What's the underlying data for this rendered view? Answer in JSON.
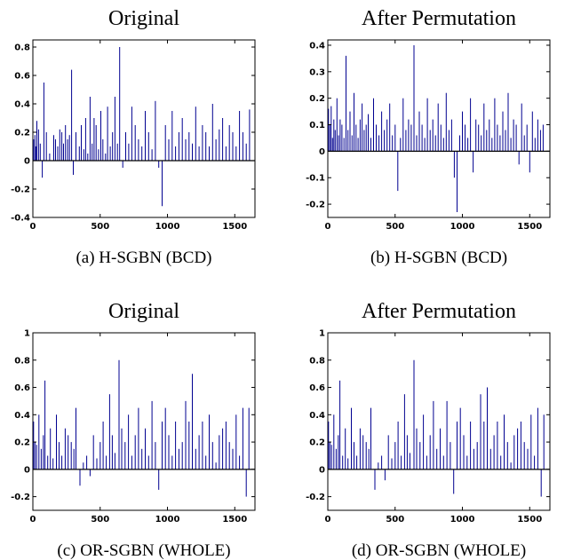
{
  "figure": {
    "panels": [
      {
        "title": "Original",
        "caption": "(a) H-SGBN (BCD)"
      },
      {
        "title": "After Permutation",
        "caption": "(b) H-SGBN (BCD)"
      },
      {
        "title": "Original",
        "caption": "(c) OR-SGBN (WHOLE)"
      },
      {
        "title": "After Permutation",
        "caption": "(d) OR-SGBN (WHOLE)"
      }
    ]
  },
  "colors": {
    "stem": "#000090",
    "baseline": "#000000",
    "frame": "#000000"
  },
  "chart_data": [
    {
      "type": "stem",
      "title": "Original",
      "caption": "(a) H-SGBN (BCD)",
      "xlim": [
        0,
        1650
      ],
      "ylim": [
        -0.4,
        0.85
      ],
      "xticks": [
        0,
        500,
        1000,
        1500
      ],
      "xtick_labels": [
        "0",
        "500",
        "1000",
        "1500"
      ],
      "yticks": [
        -0.4,
        -0.2,
        0,
        0.2,
        0.4,
        0.6,
        0.8
      ],
      "ytick_labels": [
        "-0.4",
        "-0.2",
        "0",
        "0.2",
        "0.4",
        "0.6",
        "0.8"
      ],
      "series": [
        {
          "x": [
            5,
            15,
            22,
            30,
            42,
            55,
            70,
            82,
            100,
            125,
            155,
            168,
            185,
            200,
            215,
            228,
            242,
            258,
            272,
            288,
            300,
            320,
            345,
            360,
            378,
            392,
            408,
            425,
            440,
            455,
            470,
            488,
            505,
            520,
            540,
            555,
            575,
            592,
            610,
            628,
            645,
            668,
            690,
            712,
            735,
            760,
            785,
            810,
            835,
            860,
            885,
            910,
            935,
            960,
            985,
            1010,
            1035,
            1060,
            1085,
            1110,
            1135,
            1160,
            1185,
            1210,
            1235,
            1260,
            1285,
            1310,
            1335,
            1360,
            1385,
            1410,
            1435,
            1460,
            1485,
            1510,
            1535,
            1560,
            1585,
            1610
          ],
          "y": [
            0.15,
            0.18,
            0.1,
            0.28,
            0.22,
            0.12,
            -0.12,
            0.55,
            0.2,
            0.05,
            0.18,
            0.15,
            0.1,
            0.22,
            0.2,
            0.12,
            0.25,
            0.15,
            0.18,
            0.64,
            -0.1,
            0.2,
            0.1,
            0.25,
            0.08,
            0.3,
            0.05,
            0.45,
            0.12,
            0.3,
            0.25,
            0.08,
            0.35,
            0.15,
            0.05,
            0.38,
            0.1,
            0.2,
            0.45,
            0.12,
            0.8,
            -0.05,
            0.2,
            0.12,
            0.38,
            0.25,
            0.15,
            0.1,
            0.35,
            0.2,
            0.08,
            0.42,
            -0.05,
            -0.32,
            0.25,
            0.15,
            0.35,
            0.1,
            0.2,
            0.3,
            0.15,
            0.2,
            0.12,
            0.38,
            0.1,
            0.25,
            0.2,
            0.1,
            0.4,
            0.15,
            0.22,
            0.3,
            0.1,
            0.25,
            0.2,
            0.1,
            0.35,
            0.2,
            0.12,
            0.36
          ]
        }
      ]
    },
    {
      "type": "stem",
      "title": "After Permutation",
      "caption": "(b) H-SGBN (BCD)",
      "xlim": [
        0,
        1650
      ],
      "ylim": [
        -0.25,
        0.42
      ],
      "xticks": [
        0,
        500,
        1000,
        1500
      ],
      "xtick_labels": [
        "0",
        "500",
        "1000",
        "1500"
      ],
      "yticks": [
        -0.2,
        -0.1,
        0,
        0.1,
        0.2,
        0.3,
        0.4
      ],
      "ytick_labels": [
        "-0.2",
        "-0.1",
        "0",
        "0.1",
        "0.2",
        "0.3",
        "0.4"
      ],
      "series": [
        {
          "x": [
            5,
            15,
            25,
            35,
            45,
            55,
            68,
            80,
            92,
            105,
            120,
            135,
            150,
            165,
            180,
            195,
            210,
            225,
            240,
            255,
            270,
            285,
            300,
            320,
            340,
            360,
            380,
            400,
            420,
            440,
            460,
            480,
            500,
            520,
            540,
            560,
            580,
            600,
            620,
            640,
            660,
            680,
            700,
            720,
            740,
            760,
            780,
            800,
            820,
            840,
            860,
            880,
            900,
            920,
            940,
            960,
            980,
            1000,
            1020,
            1040,
            1060,
            1080,
            1100,
            1120,
            1140,
            1160,
            1180,
            1200,
            1220,
            1240,
            1260,
            1280,
            1300,
            1320,
            1340,
            1360,
            1380,
            1400,
            1420,
            1440,
            1460,
            1480,
            1500,
            1520,
            1540,
            1560,
            1580,
            1600
          ],
          "y": [
            0.16,
            0.1,
            0.17,
            0.05,
            0.12,
            0.08,
            0.2,
            0.06,
            0.12,
            0.1,
            0.05,
            0.36,
            0.08,
            0.15,
            0.06,
            0.22,
            0.1,
            0.05,
            0.12,
            0.18,
            0.08,
            0.1,
            0.14,
            0.05,
            0.2,
            0.1,
            0.06,
            0.15,
            0.08,
            0.12,
            0.18,
            0.06,
            0.1,
            -0.15,
            0.05,
            0.2,
            0.08,
            0.12,
            0.1,
            0.4,
            0.06,
            0.15,
            0.1,
            0.05,
            0.2,
            0.08,
            0.12,
            0.06,
            0.18,
            0.1,
            0.05,
            0.22,
            0.08,
            0.12,
            -0.1,
            -0.23,
            0.06,
            0.15,
            0.1,
            0.05,
            0.2,
            -0.08,
            0.12,
            0.1,
            0.06,
            0.18,
            0.08,
            0.12,
            0.05,
            0.2,
            0.1,
            0.06,
            0.15,
            0.08,
            0.22,
            0.05,
            0.12,
            0.1,
            -0.05,
            0.18,
            0.06,
            0.1,
            -0.08,
            0.15,
            0.05,
            0.12,
            0.08,
            0.1
          ]
        }
      ]
    },
    {
      "type": "stem",
      "title": "Original",
      "caption": "(c) OR-SGBN (WHOLE)",
      "xlim": [
        0,
        1650
      ],
      "ylim": [
        -0.3,
        1.0
      ],
      "xticks": [
        0,
        500,
        1000,
        1500
      ],
      "xtick_labels": [
        "0",
        "500",
        "1000",
        "1500"
      ],
      "yticks": [
        -0.2,
        0,
        0.2,
        0.4,
        0.6,
        0.8,
        1
      ],
      "ytick_labels": [
        "-0.2",
        "0",
        "0.2",
        "0.4",
        "0.6",
        "0.8",
        "1"
      ],
      "series": [
        {
          "x": [
            5,
            15,
            28,
            45,
            62,
            78,
            90,
            110,
            130,
            150,
            175,
            195,
            215,
            240,
            262,
            285,
            305,
            320,
            350,
            375,
            400,
            425,
            450,
            475,
            500,
            522,
            545,
            570,
            590,
            610,
            640,
            660,
            685,
            710,
            735,
            760,
            785,
            810,
            835,
            860,
            885,
            910,
            935,
            960,
            985,
            1010,
            1035,
            1060,
            1085,
            1110,
            1135,
            1160,
            1185,
            1210,
            1235,
            1260,
            1285,
            1310,
            1335,
            1360,
            1385,
            1410,
            1435,
            1460,
            1485,
            1510,
            1535,
            1560,
            1585,
            1605
          ],
          "y": [
            0.35,
            0.2,
            0.18,
            0.4,
            0.15,
            0.25,
            0.65,
            0.1,
            0.3,
            0.08,
            0.4,
            0.2,
            0.1,
            0.3,
            0.25,
            0.2,
            0.15,
            0.45,
            -0.12,
            0.05,
            0.1,
            -0.05,
            0.25,
            0.08,
            0.2,
            0.35,
            0.1,
            0.55,
            0.25,
            0.12,
            0.8,
            0.3,
            0.2,
            0.4,
            0.1,
            0.25,
            0.45,
            0.15,
            0.3,
            0.1,
            0.5,
            0.2,
            -0.15,
            0.35,
            0.45,
            0.25,
            0.1,
            0.35,
            0.15,
            0.2,
            0.5,
            0.35,
            0.7,
            0.15,
            0.25,
            0.35,
            0.1,
            0.4,
            0.2,
            0.05,
            0.25,
            0.3,
            0.35,
            0.2,
            0.15,
            0.4,
            0.1,
            0.45,
            -0.2,
            0.45
          ]
        }
      ]
    },
    {
      "type": "stem",
      "title": "After Permutation",
      "caption": "(d) OR-SGBN (WHOLE)",
      "xlim": [
        0,
        1650
      ],
      "ylim": [
        -0.3,
        1.0
      ],
      "xticks": [
        0,
        500,
        1000,
        1500
      ],
      "xtick_labels": [
        "0",
        "500",
        "1000",
        "1500"
      ],
      "yticks": [
        -0.2,
        0,
        0.2,
        0.4,
        0.6,
        0.8,
        1
      ],
      "ytick_labels": [
        "-0.2",
        "0",
        "0.2",
        "0.4",
        "0.6",
        "0.8",
        "1"
      ],
      "series": [
        {
          "x": [
            5,
            15,
            28,
            45,
            62,
            78,
            90,
            110,
            130,
            150,
            175,
            195,
            215,
            240,
            262,
            285,
            305,
            320,
            350,
            375,
            400,
            425,
            450,
            475,
            500,
            522,
            545,
            570,
            590,
            610,
            640,
            660,
            685,
            710,
            735,
            760,
            785,
            810,
            835,
            860,
            885,
            910,
            935,
            960,
            985,
            1010,
            1035,
            1060,
            1085,
            1110,
            1135,
            1160,
            1185,
            1210,
            1235,
            1260,
            1285,
            1310,
            1335,
            1360,
            1385,
            1410,
            1435,
            1460,
            1485,
            1510,
            1535,
            1560,
            1585,
            1605
          ],
          "y": [
            0.35,
            0.2,
            0.18,
            0.4,
            0.15,
            0.25,
            0.65,
            0.1,
            0.3,
            0.08,
            0.45,
            0.2,
            0.1,
            0.3,
            0.25,
            0.2,
            0.15,
            0.45,
            -0.15,
            0.05,
            0.1,
            -0.08,
            0.25,
            0.08,
            0.2,
            0.35,
            0.1,
            0.55,
            0.25,
            0.12,
            0.8,
            0.3,
            0.2,
            0.4,
            0.1,
            0.25,
            0.5,
            0.15,
            0.3,
            0.1,
            0.5,
            0.2,
            -0.18,
            0.35,
            0.45,
            0.25,
            0.1,
            0.35,
            0.15,
            0.2,
            0.55,
            0.35,
            0.6,
            0.15,
            0.25,
            0.35,
            0.1,
            0.4,
            0.2,
            0.05,
            0.25,
            0.3,
            0.35,
            0.2,
            0.15,
            0.4,
            0.1,
            0.45,
            -0.2,
            0.4
          ]
        }
      ]
    }
  ]
}
